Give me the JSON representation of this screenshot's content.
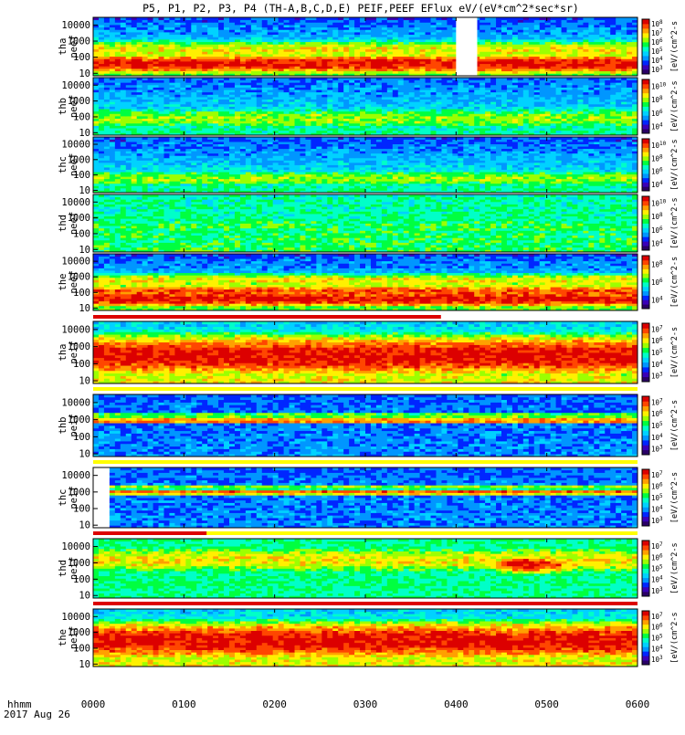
{
  "title": "P5, P1, P2, P3, P4 (TH-A,B,C,D,E) PEIF,PEEF EFlux eV/(eV*cm^2*sec*sr)",
  "time_axis": {
    "label": "hhmm",
    "date": "2017 Aug 26",
    "ticks": [
      "0000",
      "0100",
      "0200",
      "0300",
      "0400",
      "0500",
      "0600"
    ]
  },
  "colors": {
    "palette": [
      "#2a0066",
      "#3a00b8",
      "#0026ff",
      "#0096ff",
      "#00d2ff",
      "#00ffc8",
      "#00ff40",
      "#9cff00",
      "#fff000",
      "#ffa000",
      "#ff4600",
      "#dc0000"
    ],
    "gap": "#ffffff",
    "flag_bar": "#dc0000",
    "flag_bar_yellow": "#ffff00"
  },
  "chart_data": {
    "type": "heatmap",
    "x": {
      "label": "hhmm",
      "range": [
        "0000",
        "0600"
      ]
    },
    "panels": [
      {
        "name": "tha peef",
        "ylabel_top": "tha",
        "ylabel_bottom": "peef",
        "y_ticks": [
          "10000",
          "1000",
          "100",
          "10"
        ],
        "colorbar": {
          "label": "[eV/(cm^2-s",
          "ticks": [
            "10^8",
            "10^7",
            "10^6",
            "10^5",
            "10^4",
            "10^3"
          ]
        },
        "ylim": [
          7,
          30000
        ],
        "yscale": "log",
        "ribbons": [
          {
            "center": 40,
            "width": 0.45,
            "level": 11
          },
          {
            "center": 300,
            "width": 0.5,
            "level": 8
          }
        ],
        "base_low": 6.5,
        "base_high": 2.2,
        "gap_x": [
          "0400",
          "0414"
        ]
      },
      {
        "name": "thb peef",
        "ylabel_top": "thb",
        "ylabel_bottom": "peef",
        "y_ticks": [
          "10000",
          "1000",
          "100",
          "10"
        ],
        "colorbar": {
          "label": "[eV/(cm^2-s",
          "ticks": [
            "10^10",
            "10^8",
            "10^6",
            "10^4"
          ]
        },
        "ylim": [
          7,
          30000
        ],
        "yscale": "log",
        "ribbons": [
          {
            "center": 80,
            "width": 0.6,
            "level": 7
          }
        ],
        "base_low": 5.5,
        "base_high": 2.5
      },
      {
        "name": "thc peef",
        "ylabel_top": "thc",
        "ylabel_bottom": "peef",
        "y_ticks": [
          "10000",
          "1000",
          "100",
          "10"
        ],
        "colorbar": {
          "label": "[eV/(cm^2-s",
          "ticks": [
            "10^10",
            "10^8",
            "10^6",
            "10^4"
          ]
        },
        "ylim": [
          7,
          30000
        ],
        "yscale": "log",
        "ribbons": [
          {
            "center": 60,
            "width": 0.5,
            "level": 7
          }
        ],
        "base_low": 5.5,
        "base_high": 2.3
      },
      {
        "name": "thd peef",
        "ylabel_top": "thd",
        "ylabel_bottom": "peef",
        "y_ticks": [
          "10000",
          "1000",
          "100",
          "10"
        ],
        "colorbar": {
          "label": "[eV/(cm^2-s",
          "ticks": [
            "10^10",
            "10^8",
            "10^6",
            "10^4"
          ]
        },
        "ylim": [
          7,
          30000
        ],
        "yscale": "log",
        "ribbons": [
          {
            "center": 300,
            "width": 0.8,
            "level": 6
          }
        ],
        "base_low": 6.0,
        "base_high": 5.0
      },
      {
        "name": "the peef",
        "ylabel_top": "the",
        "ylabel_bottom": "peef",
        "y_ticks": [
          "10000",
          "1000",
          "100",
          "10"
        ],
        "colorbar": {
          "label": "[eV/(cm^2-s",
          "ticks": [
            "10^8",
            "10^6",
            "10^4"
          ]
        },
        "ylim": [
          7,
          30000
        ],
        "yscale": "log",
        "ribbons": [
          {
            "center": 40,
            "width": 0.4,
            "level": 11
          },
          {
            "center": 120,
            "width": 0.35,
            "level": 10
          },
          {
            "center": 600,
            "width": 0.4,
            "level": 8
          }
        ],
        "base_low": 6.5,
        "base_high": 2.2
      },
      {
        "name": "tha peif",
        "ylabel_top": "tha",
        "ylabel_bottom": "peif",
        "y_ticks": [
          "10000",
          "1000",
          "100",
          "10"
        ],
        "colorbar": {
          "label": "[eV/(cm^2-s",
          "ticks": [
            "10^7",
            "10^6",
            "10^5",
            "10^4",
            "10^3"
          ]
        },
        "ylim": [
          7,
          30000
        ],
        "yscale": "log",
        "ribbons": [
          {
            "center": 300,
            "width": 0.9,
            "level": 11
          }
        ],
        "base_low": 8.0,
        "base_high": 4.0
      },
      {
        "name": "thb peif",
        "ylabel_top": "thb",
        "ylabel_bottom": "peif",
        "y_ticks": [
          "10000",
          "1000",
          "100",
          "10"
        ],
        "colorbar": {
          "label": "[eV/(cm^2-s",
          "ticks": [
            "10^7",
            "10^6",
            "10^5",
            "10^4",
            "10^3"
          ]
        },
        "ylim": [
          7,
          30000
        ],
        "yscale": "log",
        "ribbons": [
          {
            "center": 900,
            "width": 0.12,
            "level": 10
          },
          {
            "center": 1800,
            "width": 0.15,
            "level": 7
          }
        ],
        "base_low": 3.0,
        "base_high": 2.5
      },
      {
        "name": "thc peif",
        "ylabel_top": "thc",
        "ylabel_bottom": "peif",
        "y_ticks": [
          "10000",
          "1000",
          "100",
          "10"
        ],
        "colorbar": {
          "label": "[eV/(cm^2-s",
          "ticks": [
            "10^7",
            "10^6",
            "10^5",
            "10^4",
            "10^3"
          ]
        },
        "ylim": [
          7,
          30000
        ],
        "yscale": "log",
        "ribbons": [
          {
            "center": 1000,
            "width": 0.12,
            "level": 10
          },
          {
            "center": 2000,
            "width": 0.15,
            "level": 7
          }
        ],
        "base_low": 3.0,
        "base_high": 2.5,
        "start_x": "0013"
      },
      {
        "name": "thd peif",
        "ylabel_top": "thd",
        "ylabel_bottom": "peif",
        "y_ticks": [
          "10000",
          "1000",
          "100",
          "10"
        ],
        "colorbar": {
          "label": "[eV/(cm^2-s",
          "ticks": [
            "10^7",
            "10^6",
            "10^5",
            "10^4",
            "10^3"
          ]
        },
        "ylim": [
          7,
          30000
        ],
        "yscale": "log",
        "ribbons": [
          {
            "center": 1500,
            "width": 0.7,
            "level": 8
          }
        ],
        "base_low": 5.5,
        "base_high": 5.5,
        "hot_spot": {
          "x": "0448",
          "y": 800,
          "level": 11
        }
      },
      {
        "name": "the peif",
        "ylabel_top": "the",
        "ylabel_bottom": "peif",
        "y_ticks": [
          "10000",
          "1000",
          "100",
          "10"
        ],
        "colorbar": {
          "label": "[eV/(cm^2-s",
          "ticks": [
            "10^7",
            "10^6",
            "10^5",
            "10^4",
            "10^3"
          ]
        },
        "ylim": [
          7,
          30000
        ],
        "yscale": "log",
        "ribbons": [
          {
            "center": 300,
            "width": 0.9,
            "level": 11
          }
        ],
        "base_low": 8.0,
        "base_high": 4.0
      }
    ]
  }
}
